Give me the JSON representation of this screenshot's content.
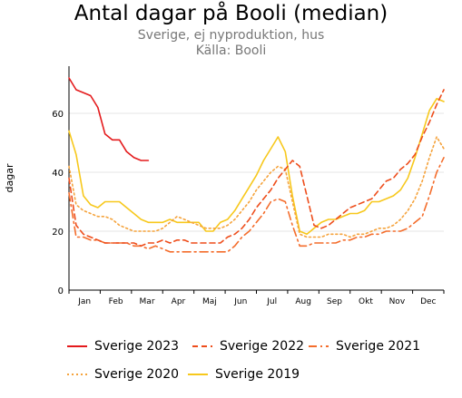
{
  "chart_data": {
    "type": "line",
    "title": "Antal dagar på Booli (median)",
    "subtitle": "Sverige, ej nyproduktion, hus",
    "source": "Källa: Booli",
    "ylabel": "dagar",
    "xlabel": "",
    "ylim": [
      0,
      76
    ],
    "yticks": [
      0,
      20,
      40,
      60
    ],
    "xlim": [
      0,
      52
    ],
    "months": [
      "Jan",
      "Feb",
      "Mar",
      "Apr",
      "Maj",
      "Jun",
      "Jul",
      "Aug",
      "Sep",
      "Okt",
      "Nov",
      "Dec"
    ],
    "grid": true,
    "legend_position": "bottom",
    "series": [
      {
        "name": "Sverige 2023",
        "color": "#e41a1c",
        "dash": "solid",
        "x": [
          0,
          1,
          2,
          3,
          4,
          5,
          6,
          7,
          8,
          9,
          10,
          11
        ],
        "y": [
          72,
          68,
          67,
          66,
          62,
          53,
          51,
          51,
          47,
          45,
          44,
          44
        ]
      },
      {
        "name": "Sverige 2022",
        "color": "#ee4d1b",
        "dash": "dash",
        "x": [
          0,
          1,
          2,
          3,
          4,
          5,
          6,
          7,
          8,
          9,
          10,
          11,
          12,
          13,
          14,
          15,
          16,
          17,
          18,
          19,
          20,
          21,
          22,
          23,
          24,
          25,
          26,
          27,
          28,
          29,
          30,
          31,
          32,
          33,
          34,
          35,
          36,
          37,
          38,
          39,
          40,
          41,
          42,
          43,
          44,
          45,
          46,
          47,
          48,
          49,
          50,
          51,
          52
        ],
        "y": [
          38,
          22,
          19,
          18,
          17,
          16,
          16,
          16,
          16,
          16,
          15,
          16,
          16,
          17,
          16,
          17,
          17,
          16,
          16,
          16,
          16,
          16,
          18,
          19,
          21,
          24,
          28,
          31,
          34,
          38,
          41,
          44,
          42,
          32,
          22,
          21,
          22,
          24,
          26,
          28,
          29,
          30,
          31,
          34,
          37,
          38,
          41,
          43,
          46,
          52,
          57,
          63,
          68
        ]
      },
      {
        "name": "Sverige 2021",
        "color": "#f46d2c",
        "dash": "dashdot",
        "x": [
          0,
          1,
          2,
          3,
          4,
          5,
          6,
          7,
          8,
          9,
          10,
          11,
          12,
          13,
          14,
          15,
          16,
          17,
          18,
          19,
          20,
          21,
          22,
          23,
          24,
          25,
          26,
          27,
          28,
          29,
          30,
          31,
          32,
          33,
          34,
          35,
          36,
          37,
          38,
          39,
          40,
          41,
          42,
          43,
          44,
          45,
          46,
          47,
          48,
          49,
          50,
          51,
          52
        ],
        "y": [
          33,
          18,
          18,
          17,
          17,
          16,
          16,
          16,
          16,
          15,
          15,
          14,
          15,
          14,
          13,
          13,
          13,
          13,
          13,
          13,
          13,
          13,
          13,
          15,
          18,
          20,
          23,
          26,
          30,
          31,
          30,
          22,
          15,
          15,
          16,
          16,
          16,
          16,
          17,
          17,
          18,
          18,
          19,
          19,
          20,
          20,
          20,
          21,
          23,
          25,
          32,
          40,
          45
        ]
      },
      {
        "name": "Sverige 2020",
        "color": "#f5a33c",
        "dash": "dot",
        "x": [
          0,
          1,
          2,
          3,
          4,
          5,
          6,
          7,
          8,
          9,
          10,
          11,
          12,
          13,
          14,
          15,
          16,
          17,
          18,
          19,
          20,
          21,
          22,
          23,
          24,
          25,
          26,
          27,
          28,
          29,
          30,
          31,
          32,
          33,
          34,
          35,
          36,
          37,
          38,
          39,
          40,
          41,
          42,
          43,
          44,
          45,
          46,
          47,
          48,
          49,
          50,
          51,
          52
        ],
        "y": [
          42,
          29,
          27,
          26,
          25,
          25,
          24,
          22,
          21,
          20,
          20,
          20,
          20,
          21,
          23,
          25,
          24,
          23,
          22,
          21,
          21,
          21,
          22,
          24,
          27,
          30,
          34,
          37,
          40,
          42,
          41,
          30,
          19,
          18,
          18,
          18,
          19,
          19,
          19,
          18,
          19,
          19,
          20,
          21,
          21,
          22,
          24,
          27,
          31,
          37,
          45,
          52,
          48
        ]
      },
      {
        "name": "Sverige 2019",
        "color": "#f7c81c",
        "dash": "solid",
        "x": [
          0,
          1,
          2,
          3,
          4,
          5,
          6,
          7,
          8,
          9,
          10,
          11,
          12,
          13,
          14,
          15,
          16,
          17,
          18,
          19,
          20,
          21,
          22,
          23,
          24,
          25,
          26,
          27,
          28,
          29,
          30,
          31,
          32,
          33,
          34,
          35,
          36,
          37,
          38,
          39,
          40,
          41,
          42,
          43,
          44,
          45,
          46,
          47,
          48,
          49,
          50,
          51,
          52
        ],
        "y": [
          54,
          46,
          32,
          29,
          28,
          30,
          30,
          30,
          28,
          26,
          24,
          23,
          23,
          23,
          24,
          23,
          23,
          23,
          23,
          20,
          20,
          23,
          24,
          27,
          31,
          35,
          39,
          44,
          48,
          52,
          47,
          32,
          20,
          19,
          21,
          23,
          24,
          24,
          25,
          26,
          26,
          27,
          30,
          30,
          31,
          32,
          34,
          38,
          45,
          53,
          61,
          65,
          64
        ]
      }
    ]
  }
}
